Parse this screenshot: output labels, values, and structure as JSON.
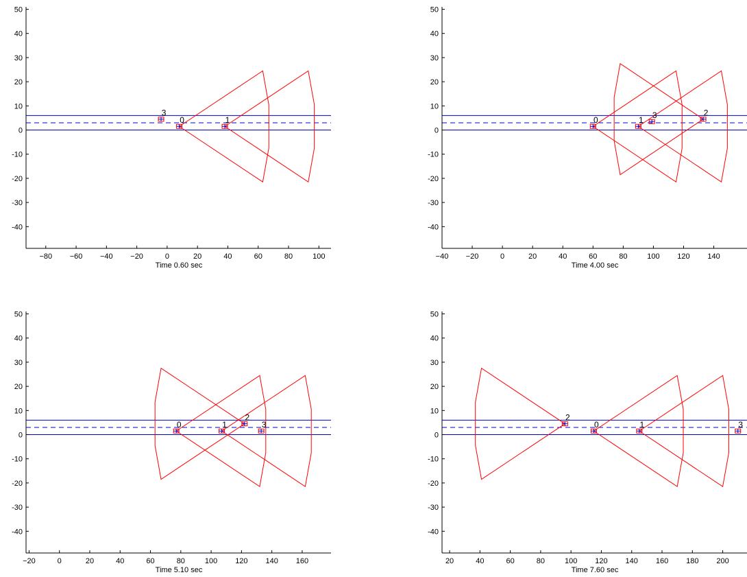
{
  "chart_data": [
    {
      "type": "line",
      "xlabel": "Time 0.60 sec",
      "xticks": [
        -80,
        -60,
        -40,
        -20,
        0,
        20,
        40,
        60,
        80,
        100
      ],
      "yticks": [
        -40,
        -30,
        -20,
        -10,
        0,
        10,
        20,
        30,
        40,
        50
      ],
      "xlim": [
        -93,
        108
      ],
      "ylim": [
        -49,
        51
      ],
      "road_lines": {
        "solid": [
          0,
          6
        ],
        "dashed": [
          3
        ]
      },
      "vehicles": [
        {
          "label": "0",
          "x": 8,
          "y": 1.5
        },
        {
          "label": "1",
          "x": 38,
          "y": 1.5
        },
        {
          "label": "3",
          "x": -4,
          "y": 4.5
        }
      ],
      "sensor_cones": [
        {
          "origin": [
            8,
            1.5
          ],
          "direction": "right"
        },
        {
          "origin": [
            38,
            1.5
          ],
          "direction": "right"
        }
      ]
    },
    {
      "type": "line",
      "xlabel": "Time 4.00 sec",
      "xticks": [
        -40,
        -20,
        0,
        20,
        40,
        60,
        80,
        100,
        120,
        140
      ],
      "yticks": [
        -40,
        -30,
        -20,
        -10,
        0,
        10,
        20,
        30,
        40,
        50
      ],
      "xlim": [
        -40,
        162
      ],
      "ylim": [
        -49,
        51
      ],
      "road_lines": {
        "solid": [
          0,
          6
        ],
        "dashed": [
          3
        ]
      },
      "vehicles": [
        {
          "label": "0",
          "x": 60,
          "y": 1.5
        },
        {
          "label": "1",
          "x": 90,
          "y": 1.5
        },
        {
          "label": "3",
          "x": 99,
          "y": 3.5
        },
        {
          "label": "2",
          "x": 133,
          "y": 4.5
        }
      ],
      "sensor_cones": [
        {
          "origin": [
            60,
            1.5
          ],
          "direction": "right"
        },
        {
          "origin": [
            90,
            1.5
          ],
          "direction": "right"
        },
        {
          "origin": [
            133,
            4.5
          ],
          "direction": "left"
        }
      ]
    },
    {
      "type": "line",
      "xlabel": "Time 5.10 sec",
      "xticks": [
        -20,
        0,
        20,
        40,
        60,
        80,
        100,
        120,
        140,
        160
      ],
      "yticks": [
        -40,
        -30,
        -20,
        -10,
        0,
        10,
        20,
        30,
        40,
        50
      ],
      "xlim": [
        -22,
        179
      ],
      "ylim": [
        -49,
        51
      ],
      "road_lines": {
        "solid": [
          0,
          6
        ],
        "dashed": [
          3
        ]
      },
      "vehicles": [
        {
          "label": "0",
          "x": 77,
          "y": 1.5
        },
        {
          "label": "1",
          "x": 107,
          "y": 1.5
        },
        {
          "label": "2",
          "x": 122,
          "y": 4.5
        },
        {
          "label": "3",
          "x": 133,
          "y": 1.5
        }
      ],
      "sensor_cones": [
        {
          "origin": [
            77,
            1.5
          ],
          "direction": "right"
        },
        {
          "origin": [
            107,
            1.5
          ],
          "direction": "right"
        },
        {
          "origin": [
            122,
            4.5
          ],
          "direction": "left"
        }
      ]
    },
    {
      "type": "line",
      "xlabel": "Time 7.60 sec",
      "xticks": [
        20,
        40,
        60,
        80,
        100,
        120,
        140,
        160,
        180,
        200
      ],
      "yticks": [
        -40,
        -30,
        -20,
        -10,
        0,
        10,
        20,
        30,
        40,
        50
      ],
      "xlim": [
        15,
        216
      ],
      "ylim": [
        -49,
        51
      ],
      "road_lines": {
        "solid": [
          0,
          6
        ],
        "dashed": [
          3
        ]
      },
      "vehicles": [
        {
          "label": "2",
          "x": 96,
          "y": 4.5
        },
        {
          "label": "0",
          "x": 115,
          "y": 1.5
        },
        {
          "label": "1",
          "x": 145,
          "y": 1.5
        },
        {
          "label": "3",
          "x": 210,
          "y": 1.5
        }
      ],
      "sensor_cones": [
        {
          "origin": [
            115,
            1.5
          ],
          "direction": "right"
        },
        {
          "origin": [
            145,
            1.5
          ],
          "direction": "right"
        },
        {
          "origin": [
            96,
            4.5
          ],
          "direction": "left"
        }
      ]
    }
  ],
  "colors": {
    "cone": "#ff0000",
    "road": "#0000cc",
    "vehicle_marker": "#ff0000",
    "vehicle_cross": "#0000cc",
    "axis": "#000000"
  }
}
